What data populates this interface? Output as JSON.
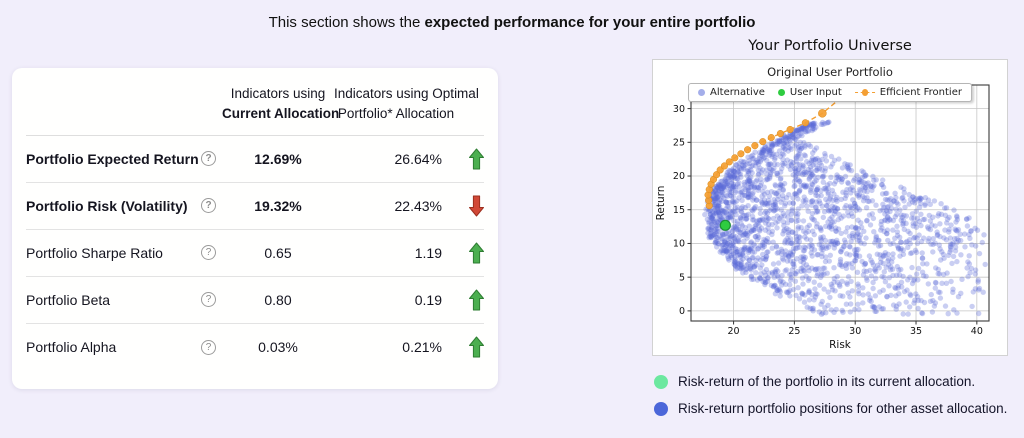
{
  "page": {
    "background": "#f1eefb",
    "title_prefix": "This section shows the ",
    "title_bold": "expected performance for your entire portfolio"
  },
  "table": {
    "header": {
      "current_line1": "Indicators using",
      "current_line2": "Current Allocation",
      "optimal_line1": "Indicators using Optimal",
      "optimal_line2": "Portfolio* Allocation"
    },
    "help_symbol": "?",
    "rows": [
      {
        "label": "Portfolio Expected Return",
        "current": "12.69%",
        "optimal": "26.64%",
        "trend": "up"
      },
      {
        "label": "Portfolio Risk (Volatility)",
        "current": "19.32%",
        "optimal": "22.43%",
        "trend": "down"
      },
      {
        "label": "Portfolio Sharpe Ratio",
        "current": "0.65",
        "optimal": "1.19",
        "trend": "up"
      },
      {
        "label": "Portfolio Beta",
        "current": "0.80",
        "optimal": "0.19",
        "trend": "up"
      },
      {
        "label": "Portfolio Alpha",
        "current": "0.03%",
        "optimal": "0.21%",
        "trend": "up"
      }
    ],
    "trend_colors": {
      "up": "#4caf50",
      "up_stroke": "#2e7d32",
      "down": "#d14836",
      "down_stroke": "#9c2f1f"
    }
  },
  "chart": {
    "title": "Your Portfolio Universe"
  },
  "chart_data": {
    "type": "scatter",
    "title": "Original User Portfolio",
    "xlabel": "Risk",
    "ylabel": "Return",
    "xlim": [
      16.5,
      41
    ],
    "ylim": [
      -1.5,
      33.5
    ],
    "xticks": [
      20,
      25,
      30,
      35,
      40
    ],
    "yticks": [
      0,
      5,
      10,
      15,
      20,
      25,
      30
    ],
    "grid": true,
    "legend_position": "upper center",
    "series": [
      {
        "name": "Alternative",
        "color": "#5a6bd8",
        "opacity": 0.33,
        "marker": "circle",
        "cloud": {
          "description": "dense Markowitz bullet of simulated portfolios opening to the right",
          "seed": 42,
          "count": 2000,
          "vertex_risk": 17.8,
          "vertex_ret": 14,
          "curvature": 0.045,
          "ret_mean": 13.5,
          "ret_sd": 6.8,
          "ret_min": -0.5,
          "ret_max": 28,
          "risk_max": 40.3,
          "tail_ret": 13,
          "tail_slope": 1.2,
          "left_bias": 1.7
        }
      },
      {
        "name": "User Input",
        "color": "#2ecc40",
        "edge_color": "#1d8f33",
        "points": [
          [
            19.32,
            12.69
          ]
        ]
      },
      {
        "name": "Efficient Frontier",
        "color": "#f49f33",
        "style": "dashed-line-with-markers",
        "endpoint_size": 5.5,
        "points": [
          [
            18.0,
            15.6
          ],
          [
            17.95,
            16.4
          ],
          [
            17.9,
            17.2
          ],
          [
            18.0,
            18.0
          ],
          [
            18.15,
            18.8
          ],
          [
            18.35,
            19.5
          ],
          [
            18.6,
            20.2
          ],
          [
            18.9,
            20.9
          ],
          [
            19.25,
            21.5
          ],
          [
            19.65,
            22.1
          ],
          [
            20.1,
            22.7
          ],
          [
            20.6,
            23.3
          ],
          [
            21.15,
            23.9
          ],
          [
            21.75,
            24.5
          ],
          [
            22.4,
            25.1
          ],
          [
            23.1,
            25.7
          ],
          [
            23.85,
            26.3
          ],
          [
            24.65,
            26.9
          ],
          [
            25.9,
            27.9
          ],
          [
            27.3,
            29.3
          ],
          [
            29.3,
            32.3
          ]
        ]
      }
    ]
  },
  "footnotes": [
    {
      "color": "#6ce8a0",
      "text": "Risk-return of the portfolio in its current allocation."
    },
    {
      "color": "#4b66d9",
      "text": "Risk-return portfolio positions for other asset allocation."
    }
  ]
}
